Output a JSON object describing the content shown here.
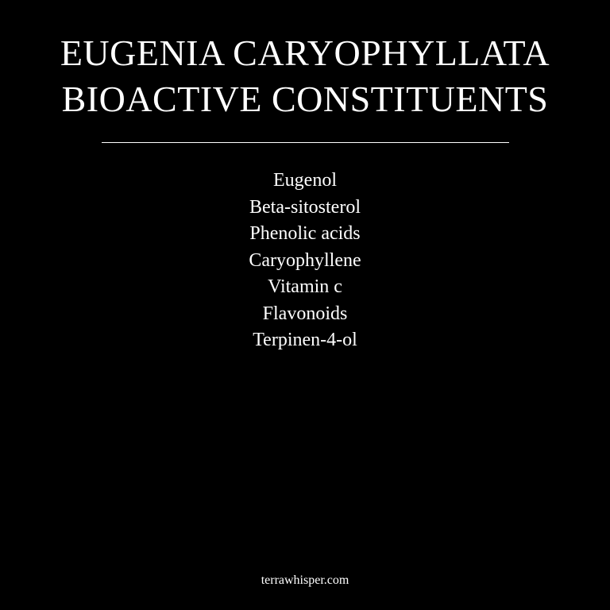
{
  "title": {
    "line1": "EUGENIA CARYOPHYLLATA",
    "line2": "BIOACTIVE CONSTITUENTS"
  },
  "constituents": [
    "Eugenol",
    "Beta-sitosterol",
    "Phenolic acids",
    "Caryophyllene",
    "Vitamin c",
    "Flavonoids",
    "Terpinen-4-ol"
  ],
  "footer": {
    "site": "terrawhisper.com"
  },
  "colors": {
    "background": "#000000",
    "text": "#ffffff"
  }
}
